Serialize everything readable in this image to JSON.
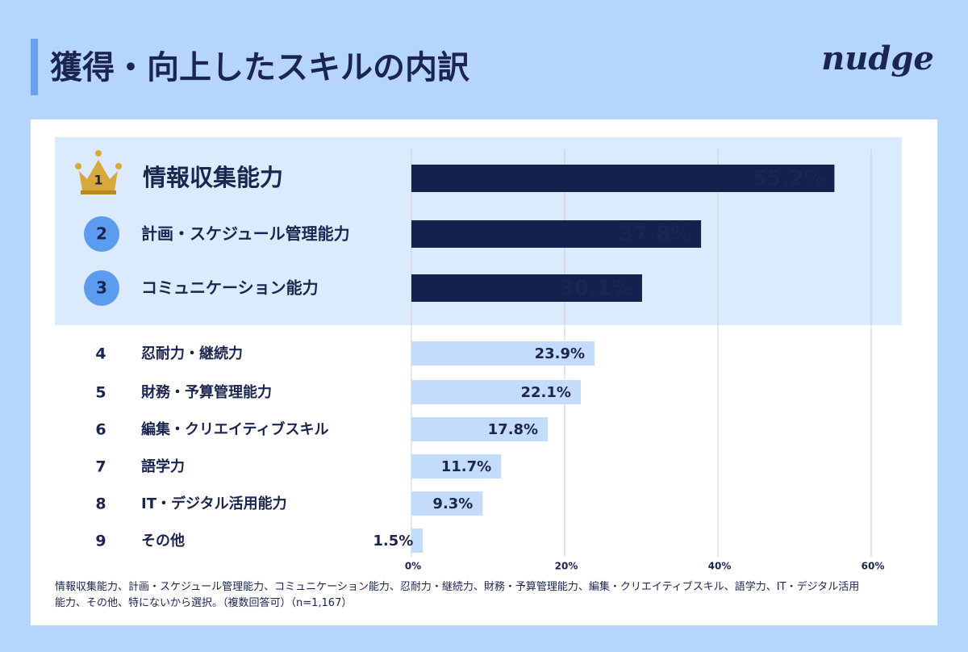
{
  "chart_data": {
    "type": "bar",
    "title": "獲得・向上したスキルの内訳",
    "logo": "nudge",
    "ranks": [
      "1",
      "2",
      "3",
      "4",
      "5",
      "6",
      "7",
      "8",
      "9"
    ],
    "categories": [
      "情報収集能力",
      "計画・スケジュール管理能力",
      "コミュニケーション能力",
      "忍耐力・継続力",
      "財務・予算管理能力",
      "編集・クリエイティブスキル",
      "語学力",
      "IT・デジタル活用能力",
      "その他"
    ],
    "values": [
      55.2,
      37.8,
      30.1,
      23.9,
      22.1,
      17.8,
      11.7,
      9.3,
      1.5
    ],
    "value_labels": [
      "55.2%",
      "37.8%",
      "30.1%",
      "23.9%",
      "22.1%",
      "17.8%",
      "11.7%",
      "9.3%",
      "1.5%"
    ],
    "colors": [
      "#14214d",
      "#14214d",
      "#14214d",
      "#c3dcf9",
      "#c3dcf9",
      "#c3dcf9",
      "#c3dcf9",
      "#c3dcf9",
      "#c3dcf9"
    ],
    "xlim": [
      0,
      60
    ],
    "xticks": [
      {
        "value": 0,
        "label": "0%"
      },
      {
        "value": 20,
        "label": "20%"
      },
      {
        "value": 40,
        "label": "40%"
      },
      {
        "value": 60,
        "label": "60%"
      }
    ],
    "grid": true,
    "note": "情報収集能力、計画・スケジュール管理能力、コミュニケーション能力、忍耐力・継続力、財務・予算管理能力、編集・クリエイティブスキル、語学力、IT・デジタル活用能力、その他、特にないから選択。（複数回答可）（n=1,167）"
  }
}
